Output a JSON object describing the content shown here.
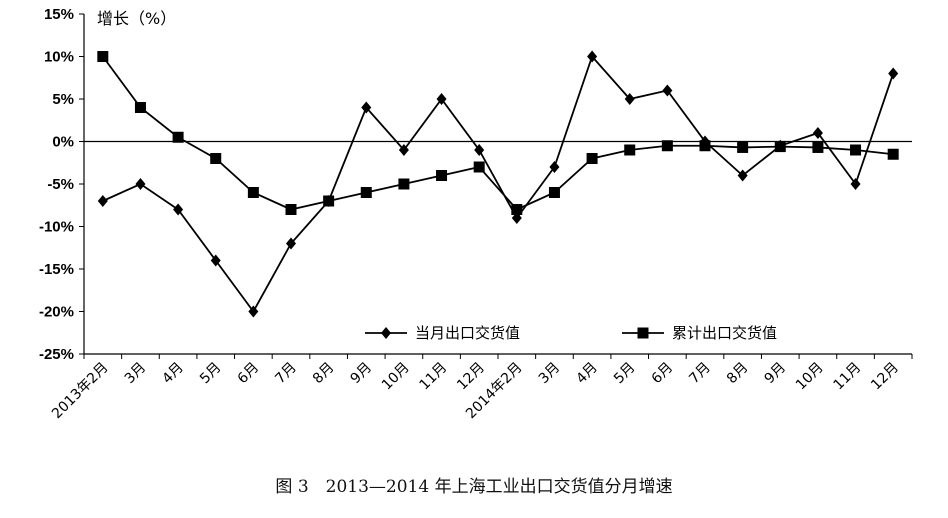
{
  "chart_data": {
    "type": "line",
    "ylabel": "增长（%）",
    "xlabel": "",
    "ylim": [
      -25,
      15
    ],
    "yticks": [
      15,
      10,
      5,
      0,
      -5,
      -10,
      -15,
      -20,
      -25
    ],
    "ytick_labels": [
      "15%",
      "10%",
      "5%",
      "0%",
      "-5%",
      "-10%",
      "-15%",
      "-20%",
      "-25%"
    ],
    "categories": [
      "2013年2月",
      "3月",
      "4月",
      "5月",
      "6月",
      "7月",
      "8月",
      "9月",
      "10月",
      "11月",
      "12月",
      "2014年2月",
      "3月",
      "4月",
      "5月",
      "6月",
      "7月",
      "8月",
      "9月",
      "10月",
      "11月",
      "12月"
    ],
    "series": [
      {
        "name": "当月出口交货值",
        "marker": "diamond",
        "color": "#000000",
        "values": [
          -7,
          -5,
          -8,
          -14,
          -20,
          -12,
          -7,
          4,
          -1,
          5,
          -1,
          -9,
          -3,
          10,
          5,
          6,
          0,
          -4,
          -0.5,
          1,
          -5,
          8
        ]
      },
      {
        "name": "累计出口交货值",
        "marker": "square",
        "color": "#000000",
        "values": [
          10,
          4,
          0.5,
          -2,
          -6,
          -8,
          -7,
          -6,
          -5,
          -4,
          -3,
          -8,
          -6,
          -2,
          -1,
          -0.5,
          -0.5,
          -0.7,
          -0.6,
          -0.7,
          -1,
          -1.5
        ]
      }
    ],
    "legend_position": "inside-lower-right",
    "grid": false
  },
  "caption": "图 3　2013—2014 年上海工业出口交货值分月增速"
}
